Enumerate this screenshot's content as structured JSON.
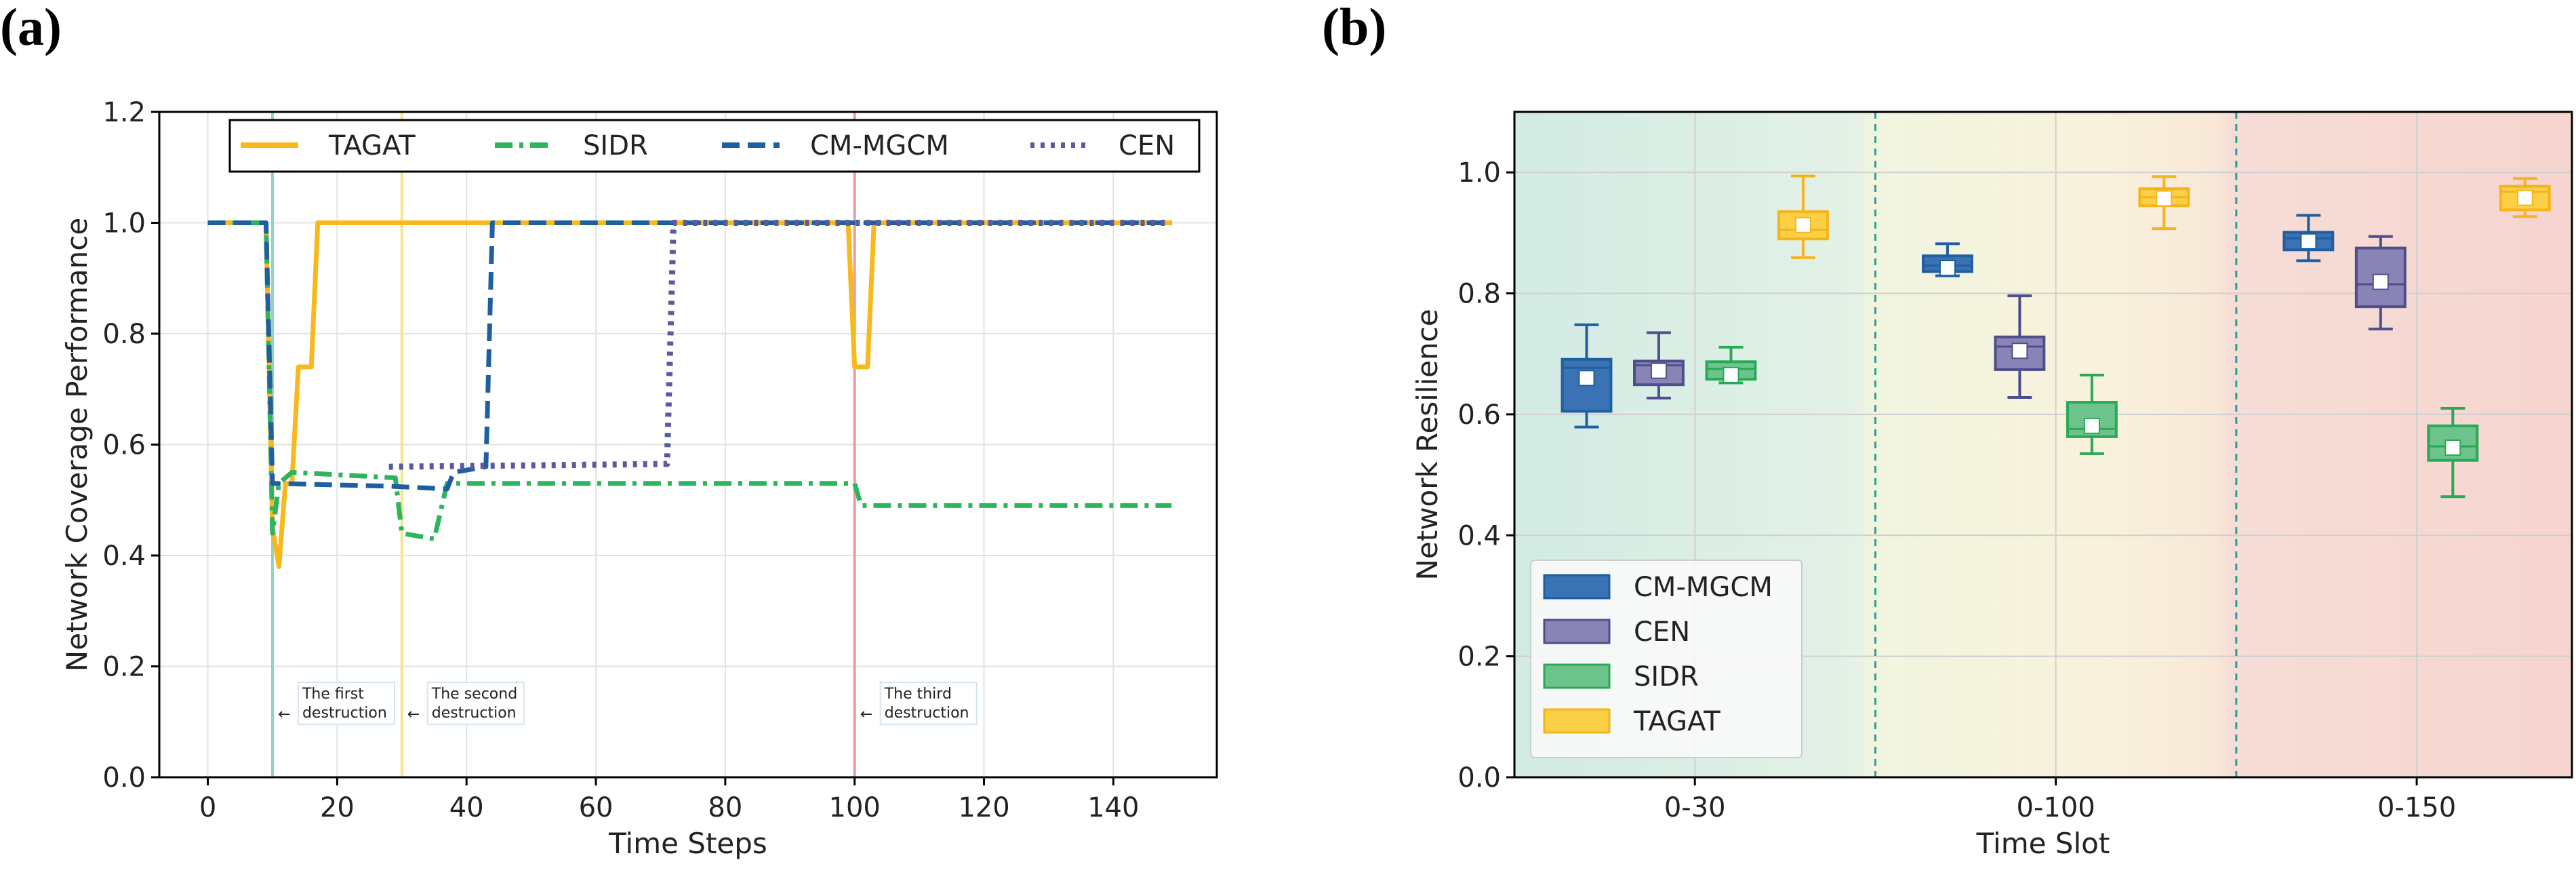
{
  "chart_data": [
    {
      "panel_label": "(a)",
      "type": "line",
      "xlabel": "Time Steps",
      "ylabel": "Network Coverage Performance",
      "xlim": [
        -7.5,
        156
      ],
      "ylim": [
        0,
        1.2
      ],
      "xticks": [
        0,
        20,
        40,
        60,
        80,
        100,
        120,
        140
      ],
      "yticks": [
        "0.0",
        "0.2",
        "0.4",
        "0.6",
        "0.8",
        "1.0",
        "1.2"
      ],
      "grid": true,
      "legend_position": "top",
      "series": [
        {
          "name": "TAGAT",
          "color": "#f9b81b",
          "style": "solid",
          "x": [
            0,
            9,
            10,
            11,
            12,
            13,
            14,
            16,
            17,
            99,
            100,
            102,
            103,
            149
          ],
          "y": [
            1,
            1,
            0.45,
            0.38,
            0.53,
            0.53,
            0.74,
            0.74,
            1,
            1,
            0.74,
            0.74,
            1,
            1
          ]
        },
        {
          "name": "SIDR",
          "color": "#2db55d",
          "style": "dashdot",
          "x": [
            0,
            9,
            10,
            11,
            13,
            29,
            30,
            35,
            37,
            100,
            101,
            149
          ],
          "y": [
            1,
            1,
            0.44,
            0.53,
            0.55,
            0.54,
            0.44,
            0.43,
            0.53,
            0.53,
            0.49,
            0.49
          ]
        },
        {
          "name": "CM-MGCM",
          "color": "#1f5fa0",
          "style": "dashed",
          "x": [
            0,
            9,
            10,
            28,
            37,
            38,
            43,
            44,
            149
          ],
          "y": [
            1,
            1,
            0.53,
            0.525,
            0.52,
            0.55,
            0.56,
            1,
            1
          ]
        },
        {
          "name": "CEN",
          "color": "#5a5a9e",
          "style": "dotted",
          "x": [
            28,
            71,
            72,
            149
          ],
          "y": [
            0.56,
            0.565,
            1,
            1
          ]
        }
      ],
      "events": [
        {
          "x": 10,
          "color": "#8fd3c4",
          "label_line1": "The first",
          "label_line2": "destruction"
        },
        {
          "x": 30,
          "color": "#f4e48a",
          "label_line1": "The second",
          "label_line2": "destruction"
        },
        {
          "x": 100,
          "color": "#ec9c9c",
          "label_line1": "The third",
          "label_line2": "destruction"
        }
      ]
    },
    {
      "panel_label": "(b)",
      "type": "box",
      "xlabel": "Time Slot",
      "ylabel": "Network Resilience",
      "ylim": [
        0,
        1.1
      ],
      "yticks": [
        "0.0",
        "0.2",
        "0.4",
        "0.6",
        "0.8",
        "1.0"
      ],
      "categories": [
        "0-30",
        "0-100",
        "0-150"
      ],
      "grid": true,
      "legend_position": "lower-left",
      "region_colors": [
        "#d2ebe3",
        "#f5f5e0",
        "#f8efdb",
        "#f6d6d0"
      ],
      "series": [
        {
          "name": "CM-MGCM",
          "color": "#1f5fa0",
          "fill": "#3a72b4",
          "boxes": [
            {
              "whislo": 0.579,
              "q1": 0.605,
              "med": 0.677,
              "q3": 0.691,
              "whishi": 0.748,
              "mean": 0.66
            },
            {
              "whislo": 0.829,
              "q1": 0.836,
              "med": 0.846,
              "q3": 0.862,
              "whishi": 0.882,
              "mean": 0.842
            },
            {
              "whislo": 0.854,
              "q1": 0.872,
              "med": 0.891,
              "q3": 0.901,
              "whishi": 0.929,
              "mean": 0.886
            }
          ]
        },
        {
          "name": "CEN",
          "color": "#4e4e8c",
          "fill": "#8885b6",
          "boxes": [
            {
              "whislo": 0.627,
              "q1": 0.649,
              "med": 0.681,
              "q3": 0.688,
              "whishi": 0.735,
              "mean": 0.672
            },
            {
              "whislo": 0.628,
              "q1": 0.674,
              "med": 0.712,
              "q3": 0.728,
              "whishi": 0.796,
              "mean": 0.705
            },
            {
              "whislo": 0.741,
              "q1": 0.778,
              "med": 0.815,
              "q3": 0.875,
              "whishi": 0.894,
              "mean": 0.819
            }
          ]
        },
        {
          "name": "SIDR",
          "color": "#2aa955",
          "fill": "#6cc48c",
          "boxes": [
            {
              "whislo": 0.652,
              "q1": 0.658,
              "med": 0.675,
              "q3": 0.687,
              "whishi": 0.711,
              "mean": 0.665
            },
            {
              "whislo": 0.535,
              "q1": 0.563,
              "med": 0.576,
              "q3": 0.62,
              "whishi": 0.665,
              "mean": 0.581
            },
            {
              "whislo": 0.464,
              "q1": 0.524,
              "med": 0.547,
              "q3": 0.581,
              "whishi": 0.61,
              "mean": 0.545
            }
          ]
        },
        {
          "name": "TAGAT",
          "color": "#f5b41a",
          "fill": "#fcd046",
          "boxes": [
            {
              "whislo": 0.859,
              "q1": 0.89,
              "med": 0.905,
              "q3": 0.935,
              "whishi": 0.994,
              "mean": 0.913
            },
            {
              "whislo": 0.907,
              "q1": 0.945,
              "med": 0.959,
              "q3": 0.973,
              "whishi": 0.993,
              "mean": 0.957
            },
            {
              "whislo": 0.927,
              "q1": 0.938,
              "med": 0.968,
              "q3": 0.977,
              "whishi": 0.99,
              "mean": 0.958
            }
          ]
        }
      ]
    }
  ]
}
